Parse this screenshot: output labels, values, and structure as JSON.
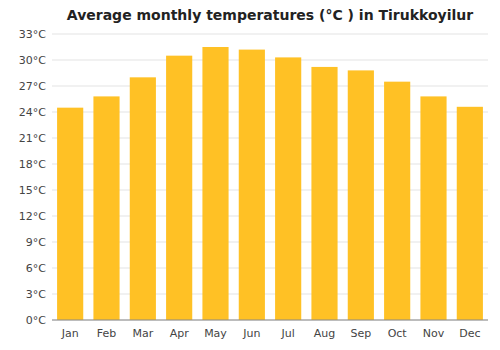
{
  "chart_data": {
    "type": "bar",
    "title": "Average monthly temperatures (°C ) in Tirukkoyilur",
    "categories": [
      "Jan",
      "Feb",
      "Mar",
      "Apr",
      "May",
      "Jun",
      "Jul",
      "Aug",
      "Sep",
      "Oct",
      "Nov",
      "Dec"
    ],
    "values": [
      24.5,
      25.8,
      28.0,
      30.5,
      31.5,
      31.2,
      30.3,
      29.2,
      28.8,
      27.5,
      25.8,
      24.6
    ],
    "color": "#FFC125",
    "ylim": [
      0,
      33
    ],
    "yticks": [
      {
        "value": 0,
        "label": "0°C"
      },
      {
        "value": 3,
        "label": "3°C"
      },
      {
        "value": 6,
        "label": "6°C"
      },
      {
        "value": 9,
        "label": "9°C"
      },
      {
        "value": 12,
        "label": "12°C"
      },
      {
        "value": 15,
        "label": "15°C"
      },
      {
        "value": 18,
        "label": "18°C"
      },
      {
        "value": 21,
        "label": "21°C"
      },
      {
        "value": 24,
        "label": "24°C"
      },
      {
        "value": 27,
        "label": "27°C"
      },
      {
        "value": 30,
        "label": "30°C"
      },
      {
        "value": 33,
        "label": "33°C"
      }
    ],
    "grid": true
  }
}
